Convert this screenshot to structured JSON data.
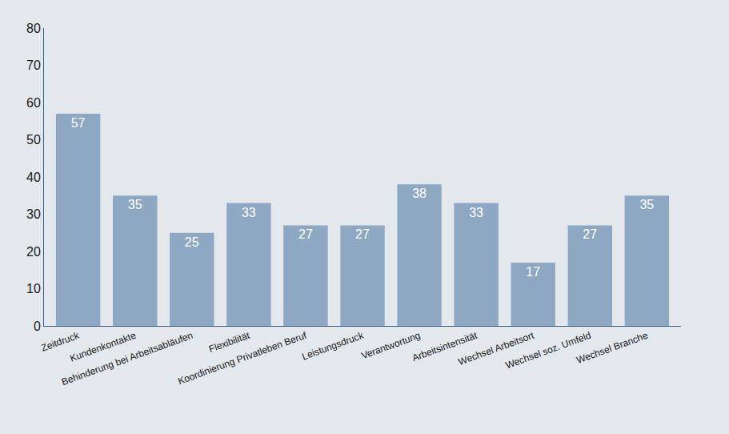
{
  "chart_data": {
    "type": "bar",
    "categories": [
      "Zeitdruck",
      "Kundenkontakte",
      "Behinderung bei Arbeitsabläufen",
      "Flexibilität",
      "Koordinierung Privatleben Beruf",
      "Leistungsdruck",
      "Verantwortung",
      "Arbeitsintensität",
      "Wechsel Arbeitsort",
      "Wechsel soz. Umfeld",
      "Wechsel Branche"
    ],
    "values": [
      57,
      35,
      25,
      33,
      27,
      27,
      38,
      33,
      17,
      27,
      35
    ],
    "color": "#8ea8c3",
    "ylim": [
      0,
      80
    ],
    "yticks": [
      0,
      10,
      20,
      30,
      40,
      50,
      60,
      70,
      80
    ],
    "grid": false,
    "data_labels": true
  }
}
